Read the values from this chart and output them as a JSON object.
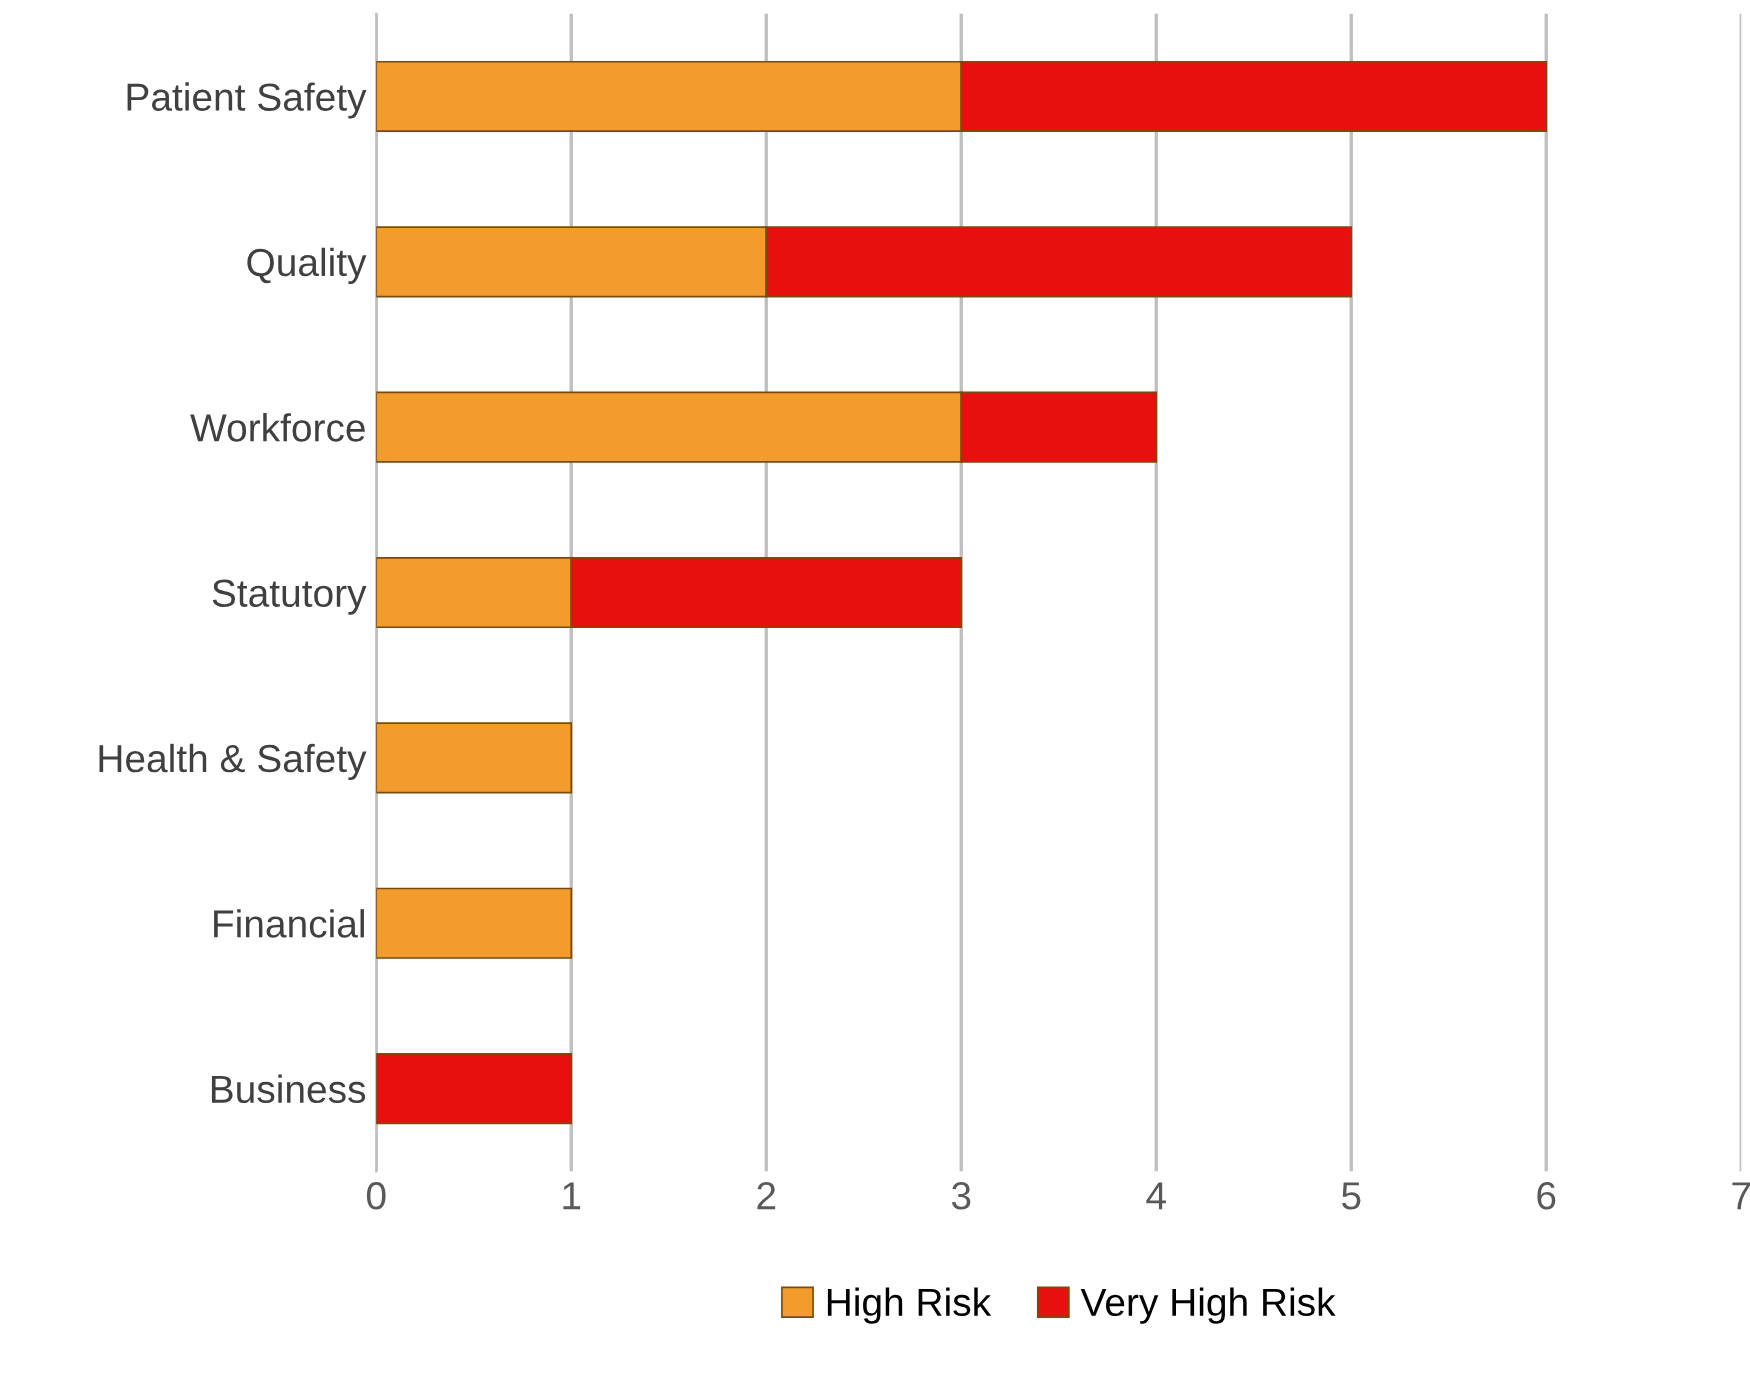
{
  "chart_data": {
    "type": "bar",
    "orientation": "horizontal",
    "stacked": true,
    "categories": [
      "Patient Safety",
      "Quality",
      "Workforce",
      "Statutory",
      "Health & Safety",
      "Financial",
      "Business"
    ],
    "series": [
      {
        "name": "High Risk",
        "color": "#f39c2e",
        "values": [
          3,
          2,
          3,
          1,
          1,
          1,
          0
        ]
      },
      {
        "name": "Very High Risk",
        "color": "#e8100f",
        "values": [
          3,
          3,
          1,
          2,
          0,
          0,
          1
        ]
      }
    ],
    "xlim": [
      0,
      7
    ],
    "xticks": [
      0,
      1,
      2,
      3,
      4,
      5,
      6,
      7
    ],
    "grid": "x",
    "legend": "bottom"
  }
}
